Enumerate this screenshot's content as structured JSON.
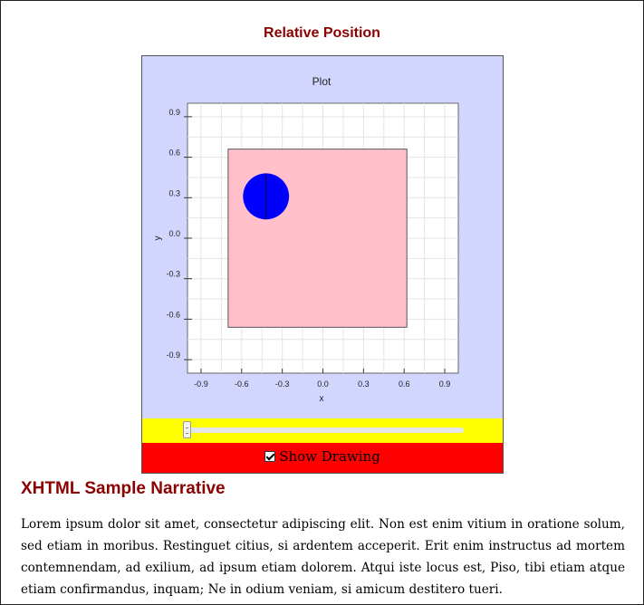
{
  "widget": {
    "title": "Relative Position"
  },
  "plot": {
    "title": "Plot",
    "xlabel": "x",
    "ylabel": "y",
    "x_ticks": [
      "-0.9",
      "-0.6",
      "-0.3",
      "0.0",
      "0.3",
      "0.6",
      "0.9"
    ],
    "y_ticks": [
      "0.9",
      "0.6",
      "0.3",
      "0.0",
      "-0.3",
      "-0.6",
      "-0.9"
    ]
  },
  "chart_data": {
    "type": "scatter",
    "title": "Plot",
    "xlabel": "x",
    "ylabel": "y",
    "xlim": [
      -1.0,
      1.0
    ],
    "ylim": [
      -1.0,
      1.0
    ],
    "grid": true,
    "shapes": [
      {
        "kind": "square",
        "x_range": [
          -0.7,
          0.62
        ],
        "y_range": [
          -0.66,
          0.66
        ],
        "fill": "#ffc0cb"
      },
      {
        "kind": "circle",
        "center": [
          -0.42,
          0.31
        ],
        "radius": 0.17,
        "fill": "#0000ff"
      }
    ]
  },
  "slider": {
    "value": 0.0
  },
  "toggle": {
    "label": "Show Drawing",
    "checked": true
  },
  "narrative": {
    "title": "XHTML Sample Narrative",
    "text": "Lorem ipsum dolor sit amet, consectetur adipiscing elit. Non est enim vitium in oratione solum, sed etiam in moribus. Restinguet citius, si ardentem acceperit. Erit enim instructus ad mortem contemnendam, ad exilium, ad ipsum etiam dolorem. Atqui iste locus est, Piso, tibi etiam atque etiam confirmandus, inquam; Ne in odium veniam, si amicum destitero tueri."
  },
  "colors": {
    "title_red": "#8B0000",
    "panel_blue": "#d2d6ff",
    "slider_yellow": "#ffff00",
    "toggle_red": "#ff0000",
    "square_pink": "#ffc0cb",
    "circle_blue": "#0000ff"
  }
}
